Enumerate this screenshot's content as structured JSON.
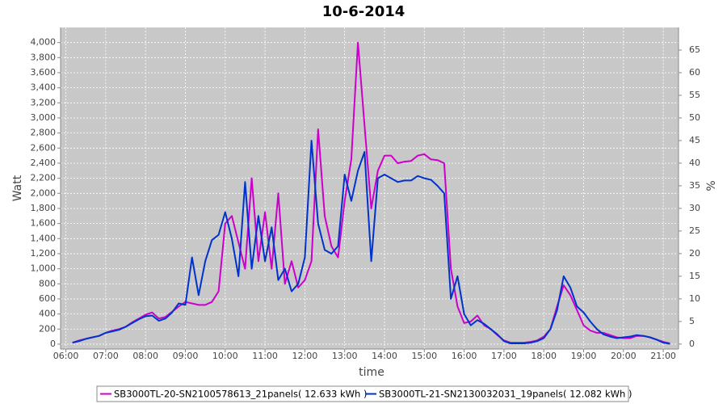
{
  "chart_data": {
    "type": "line",
    "title": "10-6-2014",
    "x_label": "time",
    "y_label": "Watt",
    "y2_label": "%",
    "x": [
      "06:10",
      "06:20",
      "06:30",
      "06:40",
      "06:50",
      "07:00",
      "07:10",
      "07:20",
      "07:30",
      "07:40",
      "07:50",
      "08:00",
      "08:10",
      "08:20",
      "08:30",
      "08:40",
      "08:50",
      "09:00",
      "09:10",
      "09:20",
      "09:30",
      "09:40",
      "09:50",
      "10:00",
      "10:10",
      "10:20",
      "10:30",
      "10:40",
      "10:50",
      "11:00",
      "11:10",
      "11:20",
      "11:30",
      "11:40",
      "11:50",
      "12:00",
      "12:10",
      "12:20",
      "12:30",
      "12:40",
      "12:50",
      "13:00",
      "13:10",
      "13:20",
      "13:30",
      "13:40",
      "13:50",
      "14:00",
      "14:10",
      "14:20",
      "14:30",
      "14:40",
      "14:50",
      "15:00",
      "15:10",
      "15:20",
      "15:30",
      "15:40",
      "15:50",
      "16:00",
      "16:10",
      "16:20",
      "16:30",
      "16:40",
      "16:50",
      "17:00",
      "17:10",
      "17:20",
      "17:30",
      "17:40",
      "17:50",
      "18:00",
      "18:10",
      "18:20",
      "18:30",
      "18:40",
      "18:50",
      "19:00",
      "19:10",
      "19:20",
      "19:30",
      "19:40",
      "19:50",
      "20:00",
      "20:10",
      "20:20",
      "20:30",
      "20:40",
      "20:50",
      "21:00",
      "21:10"
    ],
    "series": [
      {
        "name": "SB3000TL-20-SN2100578613_21panels( 12.633 kWh )",
        "color": "#cc00cc",
        "values": [
          20,
          50,
          70,
          90,
          110,
          150,
          180,
          200,
          230,
          290,
          340,
          390,
          420,
          340,
          360,
          430,
          500,
          560,
          540,
          520,
          520,
          560,
          700,
          1600,
          1700,
          1350,
          1000,
          2200,
          1100,
          1750,
          1000,
          2000,
          800,
          1100,
          750,
          850,
          1100,
          2850,
          1700,
          1300,
          1150,
          1900,
          2450,
          4000,
          2900,
          1800,
          2300,
          2500,
          2500,
          2400,
          2420,
          2430,
          2500,
          2520,
          2450,
          2440,
          2400,
          1000,
          500,
          280,
          300,
          380,
          250,
          200,
          120,
          50,
          20,
          20,
          20,
          30,
          50,
          100,
          200,
          500,
          780,
          650,
          450,
          250,
          180,
          150,
          150,
          120,
          90,
          80,
          80,
          110,
          110,
          90,
          60,
          30,
          10
        ]
      },
      {
        "name": "SB3000TL-21-SN2130032031_19panels( 12.082 kWh )",
        "color": "#0033cc",
        "values": [
          20,
          40,
          70,
          90,
          110,
          150,
          170,
          190,
          230,
          280,
          330,
          370,
          380,
          310,
          340,
          420,
          540,
          520,
          1150,
          650,
          1100,
          1380,
          1450,
          1750,
          1400,
          900,
          2150,
          1000,
          1700,
          1100,
          1550,
          850,
          1000,
          700,
          800,
          1150,
          2700,
          1600,
          1250,
          1200,
          1300,
          2250,
          1900,
          2300,
          2550,
          1100,
          2200,
          2250,
          2200,
          2150,
          2170,
          2170,
          2230,
          2200,
          2180,
          2100,
          2000,
          600,
          900,
          400,
          250,
          320,
          270,
          200,
          130,
          40,
          10,
          10,
          10,
          20,
          40,
          80,
          200,
          450,
          900,
          750,
          500,
          420,
          300,
          200,
          130,
          100,
          80,
          90,
          100,
          120,
          110,
          90,
          60,
          20,
          5
        ]
      }
    ],
    "xlim": [
      "05:52",
      "21:23"
    ],
    "xticks": [
      "06:00",
      "07:00",
      "08:00",
      "09:00",
      "10:00",
      "11:00",
      "12:00",
      "13:00",
      "14:00",
      "15:00",
      "16:00",
      "17:00",
      "18:00",
      "19:00",
      "20:00",
      "21:00"
    ],
    "ylim": [
      -65,
      4200
    ],
    "yticks": [
      0,
      200,
      400,
      600,
      800,
      {
        "value": 1000,
        "label": "1,000"
      },
      {
        "value": 1200,
        "label": "1,200"
      },
      {
        "value": 1400,
        "label": "1,400"
      },
      {
        "value": 1600,
        "label": "1,600"
      },
      {
        "value": 1800,
        "label": "1,800"
      },
      {
        "value": 2000,
        "label": "2,000"
      },
      {
        "value": 2200,
        "label": "2,200"
      },
      {
        "value": 2400,
        "label": "2,400"
      },
      {
        "value": 2600,
        "label": "2,600"
      },
      {
        "value": 2800,
        "label": "2,800"
      },
      {
        "value": 3000,
        "label": "3,000"
      },
      {
        "value": 3200,
        "label": "3,200"
      },
      {
        "value": 3400,
        "label": "3,400"
      },
      {
        "value": 3600,
        "label": "3,600"
      },
      {
        "value": 3800,
        "label": "3,800"
      },
      {
        "value": 4000,
        "label": "4,000"
      }
    ],
    "y2lim": [
      -1.1,
      70
    ],
    "y2ticks": [
      0,
      5,
      10,
      15,
      20,
      25,
      30,
      35,
      40,
      45,
      50,
      55,
      60,
      65
    ],
    "grid": true
  }
}
